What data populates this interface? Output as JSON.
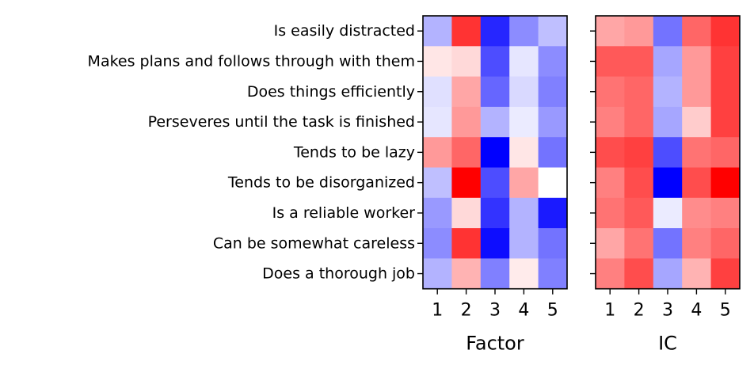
{
  "chart_data": [
    {
      "type": "heatmap",
      "xlabel": "Factor",
      "columns": [
        "1",
        "2",
        "3",
        "4",
        "5"
      ],
      "rows": [
        "Is easily distracted",
        "Makes plans and follows through with them",
        "Does things efficiently",
        "Perseveres until the task is finished",
        "Tends to be lazy",
        "Tends to be disorganized",
        "Is a reliable worker",
        "Can be somewhat careless",
        "Does a thorough job"
      ],
      "colormap": {
        "negative": "#0000ff",
        "zero": "#ffffff",
        "positive": "#ff0000"
      },
      "values": [
        [
          -0.3,
          0.8,
          -0.85,
          -0.45,
          -0.25
        ],
        [
          0.1,
          0.15,
          -0.7,
          -0.1,
          -0.45
        ],
        [
          -0.12,
          0.35,
          -0.6,
          -0.15,
          -0.5
        ],
        [
          -0.1,
          0.4,
          -0.3,
          -0.08,
          -0.4
        ],
        [
          0.4,
          0.6,
          -1.0,
          0.1,
          -0.55
        ],
        [
          -0.25,
          1.0,
          -0.7,
          0.35,
          0.0
        ],
        [
          -0.4,
          0.15,
          -0.8,
          -0.3,
          -0.9
        ],
        [
          -0.45,
          0.8,
          -0.95,
          -0.3,
          -0.55
        ],
        [
          -0.3,
          0.3,
          -0.5,
          0.08,
          -0.5
        ]
      ]
    },
    {
      "type": "heatmap",
      "xlabel": "IC",
      "columns": [
        "1",
        "2",
        "3",
        "4",
        "5"
      ],
      "rows": [
        "Is easily distracted",
        "Makes plans and follows through with them",
        "Does things efficiently",
        "Perseveres until the task is finished",
        "Tends to be lazy",
        "Tends to be disorganized",
        "Is a reliable worker",
        "Can be somewhat careless",
        "Does a thorough job"
      ],
      "colormap": {
        "negative": "#0000ff",
        "zero": "#ffffff",
        "positive": "#ff0000"
      },
      "values": [
        [
          0.35,
          0.4,
          -0.55,
          0.6,
          0.8
        ],
        [
          0.65,
          0.65,
          -0.35,
          0.4,
          0.75
        ],
        [
          0.55,
          0.6,
          -0.3,
          0.4,
          0.75
        ],
        [
          0.5,
          0.6,
          -0.35,
          0.2,
          0.75
        ],
        [
          0.7,
          0.75,
          -0.7,
          0.55,
          0.6
        ],
        [
          0.5,
          0.7,
          -1.0,
          0.7,
          1.0
        ],
        [
          0.55,
          0.65,
          -0.08,
          0.45,
          0.5
        ],
        [
          0.35,
          0.55,
          -0.55,
          0.5,
          0.6
        ],
        [
          0.5,
          0.7,
          -0.35,
          0.3,
          0.75
        ]
      ]
    }
  ]
}
